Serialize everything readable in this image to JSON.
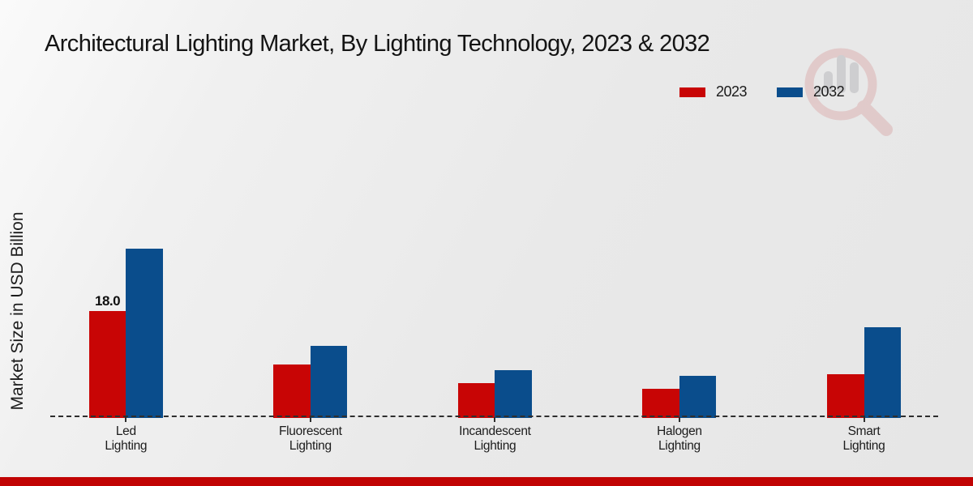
{
  "title": "Architectural Lighting Market, By Lighting Technology, 2023 & 2032",
  "legend": [
    {
      "label": "2023",
      "color": "#c80505"
    },
    {
      "label": "2032",
      "color": "#0a4d8c"
    }
  ],
  "annotation": {
    "text": "18.0",
    "series": "2023",
    "category": "Led Lighting"
  },
  "colors": {
    "series_2023": "#c80505",
    "series_2032": "#0a4d8c",
    "footer_strip": "#c10404",
    "axis_line": "#2e2e2e",
    "watermark_pink": "#dcb2b2",
    "watermark_gray": "#c3c3c7"
  },
  "chart_data": {
    "type": "bar",
    "title": "Architectural Lighting Market, By Lighting Technology, 2023 & 2032",
    "ylabel": "Market Size in USD Billion",
    "xlabel": "",
    "categories": [
      "Led Lighting",
      "Fluorescent Lighting",
      "Incandescent Lighting",
      "Halogen Lighting",
      "Smart Lighting"
    ],
    "series": [
      {
        "name": "2023",
        "color": "#c80505",
        "values": [
          18.0,
          9.0,
          5.8,
          4.9,
          7.4
        ]
      },
      {
        "name": "2032",
        "color": "#0a4d8c",
        "values": [
          28.4,
          12.1,
          8.0,
          7.0,
          15.2
        ]
      }
    ],
    "data_labels": [
      {
        "series": "2023",
        "category": "Led Lighting",
        "label": "18.0"
      }
    ],
    "ylim": [
      0,
      30
    ],
    "grid": false,
    "y_axis_ticks_visible": false,
    "baseline_style": "dashed",
    "legend_position": "top-right"
  }
}
